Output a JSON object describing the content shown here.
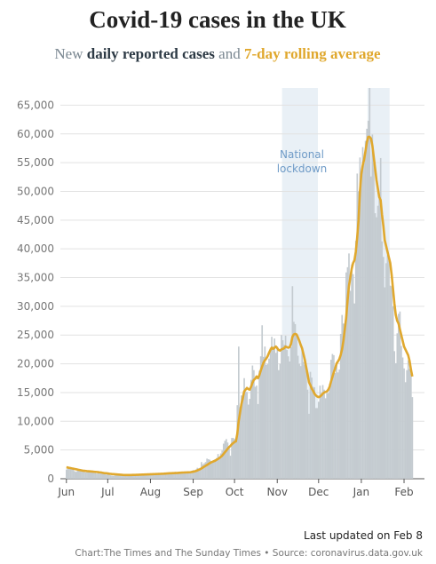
{
  "chart_data": {
    "type": "bar",
    "title": "Covid-19 cases in the UK",
    "subtitle": [
      "New ",
      "daily reported cases",
      " and ",
      "7-day rolling average"
    ],
    "annotation": [
      "National",
      "lockdown"
    ],
    "footer": [
      "Last updated on Feb 8",
      "Chart:The Times and The Sunday Times • Source: coronavirus.data.gov.uk"
    ],
    "shaded_ranges": [
      [
        157,
        183
      ],
      [
        219,
        235
      ]
    ],
    "ylim": [
      0,
      68000
    ],
    "yticks": [
      0,
      {
        "value": 5000,
        "label": "5,000"
      },
      {
        "value": 10000,
        "label": "10,000"
      },
      {
        "value": 15000,
        "label": "15,000"
      },
      {
        "value": 20000,
        "label": "20,000"
      },
      {
        "value": 25000,
        "label": "25,000"
      },
      {
        "value": 30000,
        "label": "30,000"
      },
      {
        "value": 35000,
        "label": "35,000"
      },
      {
        "value": 40000,
        "label": "40,000"
      },
      {
        "value": 45000,
        "label": "45,000"
      },
      {
        "value": 50000,
        "label": "50,000"
      },
      {
        "value": 55000,
        "label": "55,000"
      },
      {
        "value": 60000,
        "label": "60,000"
      },
      {
        "value": 65000,
        "label": "65,000"
      }
    ],
    "grid": true,
    "categories": [
      "Jun",
      null,
      null,
      null,
      null,
      null,
      null,
      null,
      null,
      null,
      null,
      null,
      null,
      null,
      null,
      null,
      null,
      null,
      null,
      null,
      null,
      null,
      null,
      null,
      null,
      null,
      null,
      null,
      null,
      null,
      "Jul",
      null,
      null,
      null,
      null,
      null,
      null,
      null,
      null,
      null,
      null,
      null,
      null,
      null,
      null,
      null,
      null,
      null,
      null,
      null,
      null,
      null,
      null,
      null,
      null,
      null,
      null,
      null,
      null,
      null,
      null,
      "Aug",
      null,
      null,
      null,
      null,
      null,
      null,
      null,
      null,
      null,
      null,
      null,
      null,
      null,
      null,
      null,
      null,
      null,
      null,
      null,
      null,
      null,
      null,
      null,
      null,
      null,
      null,
      null,
      null,
      null,
      null,
      "Sep",
      null,
      null,
      null,
      null,
      null,
      null,
      null,
      null,
      null,
      null,
      null,
      null,
      null,
      null,
      null,
      null,
      null,
      null,
      null,
      null,
      null,
      null,
      null,
      null,
      null,
      null,
      null,
      null,
      null,
      "Oct",
      null,
      null,
      null,
      null,
      null,
      null,
      null,
      null,
      null,
      null,
      null,
      null,
      null,
      null,
      null,
      null,
      null,
      null,
      null,
      null,
      null,
      null,
      null,
      null,
      null,
      null,
      null,
      null,
      null,
      null,
      "Nov",
      null,
      null,
      null,
      null,
      null,
      null,
      null,
      null,
      null,
      null,
      null,
      null,
      null,
      null,
      null,
      null,
      null,
      null,
      null,
      null,
      null,
      null,
      null,
      null,
      null,
      null,
      null,
      null,
      null,
      "Dec",
      null,
      null,
      null,
      null,
      null,
      null,
      null,
      null,
      null,
      null,
      null,
      null,
      null,
      null,
      null,
      null,
      null,
      null,
      null,
      null,
      null,
      null,
      null,
      null,
      null,
      null,
      null,
      null,
      null,
      null,
      "Jan",
      null,
      null,
      null,
      null,
      null,
      null,
      null,
      null,
      null,
      null,
      null,
      null,
      null,
      null,
      null,
      null,
      null,
      null,
      null,
      null,
      null,
      null,
      null,
      null,
      null,
      null,
      null,
      null,
      null,
      null,
      "Feb",
      null,
      null,
      null,
      null,
      null,
      null
    ],
    "series": [
      {
        "name": "daily reported cases",
        "type": "bar",
        "color": "#c4cbd0",
        "values": [
          1600,
          1800,
          1900,
          1700,
          1650,
          1550,
          1300,
          1200,
          1400,
          1500,
          1300,
          1400,
          1500,
          1300,
          1100,
          1200,
          1300,
          1200,
          1300,
          1250,
          1200,
          1000,
          900,
          1000,
          1100,
          1000,
          900,
          900,
          800,
          700,
          800,
          700,
          600,
          550,
          500,
          550,
          600,
          650,
          650,
          600,
          550,
          500,
          600,
          650,
          700,
          650,
          700,
          650,
          600,
          700,
          750,
          700,
          750,
          750,
          800,
          700,
          700,
          750,
          800,
          850,
          800,
          800,
          700,
          750,
          900,
          950,
          900,
          850,
          800,
          750,
          1000,
          1100,
          1000,
          950,
          1000,
          1050,
          900,
          900,
          1100,
          1200,
          1100,
          1050,
          1000,
          950,
          1100,
          1200,
          1250,
          1200,
          1100,
          1200,
          1300,
          1400,
          1500,
          1300,
          1600,
          1900,
          1800,
          1900,
          2900,
          2500,
          2700,
          2900,
          3500,
          3400,
          3300,
          3100,
          3000,
          3200,
          3400,
          3600,
          4300,
          3800,
          4400,
          4900,
          6100,
          6600,
          6900,
          6300,
          5700,
          4000,
          7100,
          7100,
          6900,
          6900,
          12800,
          23000,
          12500,
          14500,
          14200,
          17500,
          15200,
          15100,
          12900,
          13900,
          17200,
          19700,
          18900,
          16000,
          16200,
          13000,
          18800,
          21300,
          26700,
          21200,
          23000,
          19800,
          20000,
          20900,
          22800,
          24700,
          23000,
          24400,
          21900,
          23000,
          18900,
          20000,
          25000,
          24100,
          23300,
          24900,
          22400,
          21300,
          20400,
          22900,
          33500,
          27300,
          26900,
          24900,
          21400,
          20000,
          19600,
          22900,
          20300,
          19800,
          18700,
          15500,
          11300,
          18600,
          17600,
          16000,
          15900,
          12300,
          12300,
          13400,
          16200,
          14900,
          16300,
          15500,
          14000,
          14900,
          14900,
          16500,
          20700,
          21700,
          21500,
          18400,
          20300,
          18500,
          19000,
          25200,
          28500,
          27000,
          27000,
          35900,
          36800,
          39200,
          32700,
          37300,
          35600,
          30500,
          41400,
          53100,
          50000,
          55900,
          53300,
          57700,
          54900,
          58800,
          60900,
          62300,
          68000,
          52600,
          59900,
          54900,
          46200,
          45500,
          47500,
          48700,
          55800,
          41300,
          38600,
          33300,
          37500,
          38900,
          37900,
          33600,
          33500,
          30000,
          22200,
          20100,
          25300,
          28700,
          29100,
          23100,
          21100,
          19200,
          16800,
          18900,
          20600,
          19100,
          18300,
          14200
        ]
      },
      {
        "name": "7-day rolling average",
        "type": "line",
        "color": "#e0a82e",
        "values": [
          2000,
          1950,
          1900,
          1850,
          1800,
          1750,
          1700,
          1650,
          1600,
          1550,
          1500,
          1450,
          1400,
          1380,
          1350,
          1320,
          1300,
          1280,
          1260,
          1240,
          1220,
          1200,
          1180,
          1150,
          1120,
          1100,
          1050,
          1000,
          970,
          950,
          920,
          880,
          850,
          820,
          800,
          780,
          760,
          740,
          720,
          700,
          680,
          660,
          650,
          640,
          640,
          640,
          650,
          650,
          660,
          660,
          670,
          680,
          690,
          700,
          710,
          720,
          730,
          740,
          750,
          760,
          770,
          780,
          790,
          800,
          810,
          820,
          830,
          840,
          850,
          860,
          870,
          880,
          900,
          920,
          940,
          950,
          960,
          970,
          980,
          990,
          1000,
          1020,
          1040,
          1060,
          1070,
          1080,
          1090,
          1100,
          1110,
          1120,
          1140,
          1180,
          1230,
          1280,
          1350,
          1450,
          1550,
          1650,
          1800,
          1950,
          2100,
          2250,
          2400,
          2550,
          2700,
          2850,
          2950,
          3050,
          3150,
          3300,
          3450,
          3600,
          3800,
          4000,
          4300,
          4600,
          4900,
          5200,
          5500,
          5700,
          6000,
          6200,
          6400,
          6500,
          7800,
          10000,
          11500,
          13000,
          14000,
          15200,
          15500,
          15800,
          15600,
          15500,
          16000,
          16700,
          17200,
          17400,
          17800,
          17500,
          18000,
          18800,
          19500,
          20200,
          20600,
          20900,
          21300,
          21900,
          22400,
          22800,
          22600,
          22800,
          23000,
          22700,
          22400,
          22300,
          22500,
          22600,
          22700,
          23000,
          22900,
          22800,
          22900,
          23500,
          24700,
          25100,
          25200,
          25100,
          24600,
          24000,
          23300,
          22700,
          21700,
          20700,
          19400,
          18200,
          16800,
          16300,
          15700,
          15300,
          14800,
          14500,
          14300,
          14200,
          14300,
          14500,
          14800,
          15000,
          15100,
          15200,
          15500,
          16000,
          16900,
          17700,
          18500,
          19200,
          20000,
          20400,
          20800,
          21500,
          22500,
          24000,
          26000,
          28000,
          31000,
          33500,
          35000,
          36500,
          37500,
          38000,
          39500,
          42000,
          45000,
          50000,
          53000,
          54500,
          55500,
          57000,
          58500,
          59500,
          59500,
          59200,
          58000,
          56000,
          54000,
          52000,
          50500,
          49000,
          48500,
          46000,
          44000,
          41500,
          40500,
          39500,
          38500,
          37500,
          35500,
          33000,
          30500,
          28500,
          27500,
          27000,
          26000,
          25000,
          24000,
          23000,
          22500,
          22000,
          21500,
          20500,
          19000,
          17800
        ]
      }
    ]
  }
}
